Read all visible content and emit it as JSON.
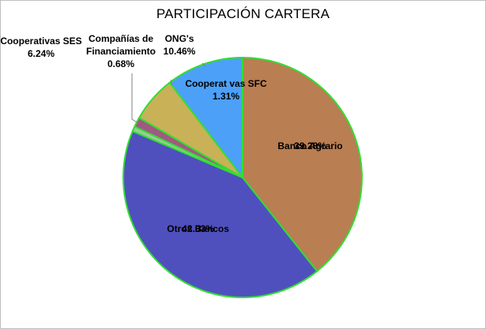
{
  "chart_data": {
    "type": "pie",
    "title": "PARTICIPACIÓN CARTERA",
    "slices": [
      {
        "label": "Banco Agrario",
        "value": 39.28,
        "value_label": "39.28%",
        "color": "#b97e52"
      },
      {
        "label": "Otros Bancos",
        "value": 42.03,
        "value_label": "42.03%",
        "color": "#4f50bd"
      },
      {
        "label": "",
        "value": 0.68,
        "value_label": "",
        "color": "#9acc9a"
      },
      {
        "label": "",
        "value": 1.31,
        "value_label": "",
        "color": "#a05a80"
      },
      {
        "label": "Cooperativas SES",
        "value": 6.24,
        "value_label": "6.24%",
        "color": "#c9b158"
      },
      {
        "label": "ONG's",
        "value": 10.46,
        "value_label": "10.46%",
        "color": "#4da0f7"
      }
    ],
    "inside_label": {
      "lines": [
        "Cooperat vas SFC",
        "1.31%"
      ]
    },
    "callout_labels": [
      {
        "lines": [
          "Cooperativas SES",
          "6.24%"
        ]
      },
      {
        "lines": [
          "Compañías de",
          "Financiamiento",
          "0.68%"
        ]
      },
      {
        "lines": [
          "ONG's",
          "10.46%"
        ]
      }
    ],
    "slice_border_color": "#33dd33",
    "legend": "none"
  }
}
